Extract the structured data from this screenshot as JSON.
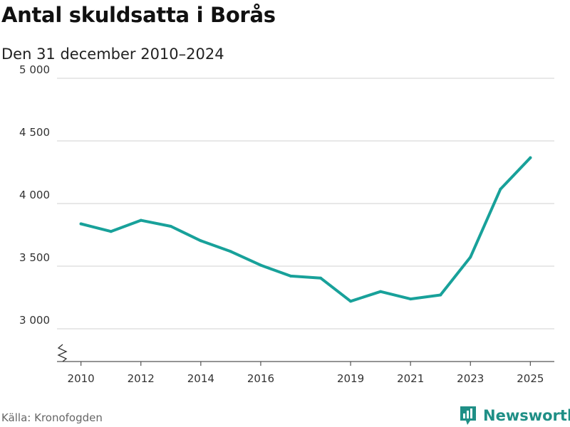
{
  "chart_data": {
    "type": "line",
    "title": "Antal skuldsatta i Borås",
    "subtitle": "Den 31 december 2010–2024",
    "x": [
      2010,
      2011,
      2012,
      2013,
      2014,
      2015,
      2016,
      2017,
      2018,
      2019,
      2020,
      2021,
      2022,
      2023,
      2024,
      2025
    ],
    "series": [
      {
        "values": [
          3838,
          3777,
          3866,
          3818,
          3703,
          3617,
          3508,
          3421,
          3405,
          3220,
          3297,
          3238,
          3270,
          3573,
          4114,
          4366
        ]
      }
    ],
    "xticks": [
      2010,
      2012,
      2014,
      2016,
      2019,
      2021,
      2023,
      2025
    ],
    "xtick_labels": [
      "2010",
      "2012",
      "2014",
      "2016",
      "2019",
      "2021",
      "2023",
      "2025"
    ],
    "yticks": [
      3000,
      3500,
      4000,
      4500,
      5000
    ],
    "ytick_labels": [
      "3 000",
      "3 500",
      "4 000",
      "4 500",
      "5 000"
    ],
    "xlim": [
      2009.2,
      2025.8
    ],
    "ylim": [
      3000,
      5000
    ],
    "y_axis_break": true,
    "grid": "horizontal",
    "line_color": "#18a19a",
    "grid_color": "#d9d9d9",
    "axis_color": "#555555"
  },
  "footer": {
    "source": "Källa: Kronofogden",
    "brand": "Newsworthy",
    "brand_color": "#1f8f86"
  },
  "icons": {
    "brand_logo": "newsworthy-logo-icon"
  }
}
